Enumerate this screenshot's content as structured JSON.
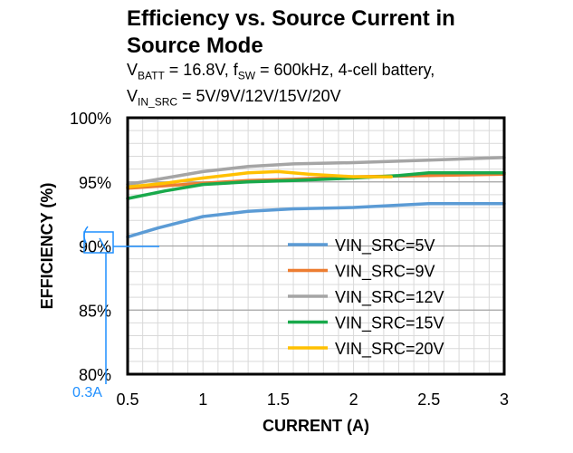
{
  "title": {
    "line1": "Efficiency vs. Source Current in",
    "line2": "Source Mode",
    "sub1": {
      "v": "V",
      "v_sub": "BATT",
      "mid": " = 16.8V, f",
      "f_sub": "SW",
      "tail": " = 600kHz, 4-cell battery,"
    },
    "sub2": {
      "v": "V",
      "v_sub": "IN_SRC",
      "tail": " = 5V/9V/12V/15V/20V"
    }
  },
  "chart_data": {
    "type": "line",
    "xlabel": "CURRENT (A)",
    "ylabel": "EFFICIENCY (%)",
    "xlim": [
      0.5,
      3
    ],
    "ylim": [
      80,
      100
    ],
    "x_ticks": [
      0.5,
      1,
      1.5,
      2,
      2.5,
      3
    ],
    "x_tick_labels": [
      "0.5",
      "1",
      "1.5",
      "2",
      "2.5",
      "3"
    ],
    "y_ticks": [
      80,
      85,
      90,
      95,
      100
    ],
    "y_tick_labels": [
      "80%",
      "85%",
      "90%",
      "95%",
      "100%"
    ],
    "grid": true,
    "legend_position": "bottom-right",
    "series": [
      {
        "name": "VIN_SRC=5V",
        "color": "#5b9bd5",
        "x": [
          0.5,
          0.7,
          1.0,
          1.3,
          1.6,
          2.0,
          2.5,
          3.0
        ],
        "y": [
          90.7,
          91.4,
          92.3,
          92.7,
          92.9,
          93.0,
          93.3,
          93.3
        ]
      },
      {
        "name": "VIN_SRC=9V",
        "color": "#ed7d31",
        "x": [
          0.5,
          0.75,
          1.0,
          1.3,
          1.6,
          2.0,
          2.5,
          3.0
        ],
        "y": [
          94.5,
          94.7,
          94.9,
          95.1,
          95.2,
          95.4,
          95.5,
          95.6
        ]
      },
      {
        "name": "VIN_SRC=12V",
        "color": "#a5a5a5",
        "x": [
          0.5,
          0.75,
          1.0,
          1.3,
          1.6,
          2.0,
          2.5,
          3.0
        ],
        "y": [
          94.8,
          95.3,
          95.8,
          96.2,
          96.4,
          96.5,
          96.7,
          96.9
        ]
      },
      {
        "name": "VIN_SRC=15V",
        "color": "#19a94b",
        "x": [
          0.5,
          0.75,
          1.0,
          1.3,
          1.6,
          2.0,
          2.3,
          2.5,
          3.0
        ],
        "y": [
          93.7,
          94.3,
          94.8,
          95.0,
          95.1,
          95.3,
          95.5,
          95.7,
          95.7
        ]
      },
      {
        "name": "VIN_SRC=20V",
        "color": "#ffc000",
        "x": [
          0.5,
          0.75,
          1.0,
          1.3,
          1.5,
          1.7,
          2.0,
          2.25
        ],
        "y": [
          94.6,
          94.9,
          95.3,
          95.7,
          95.8,
          95.6,
          95.4,
          95.4
        ]
      }
    ],
    "annotation": {
      "label": "0.3A",
      "color": "#1f8fff"
    }
  }
}
